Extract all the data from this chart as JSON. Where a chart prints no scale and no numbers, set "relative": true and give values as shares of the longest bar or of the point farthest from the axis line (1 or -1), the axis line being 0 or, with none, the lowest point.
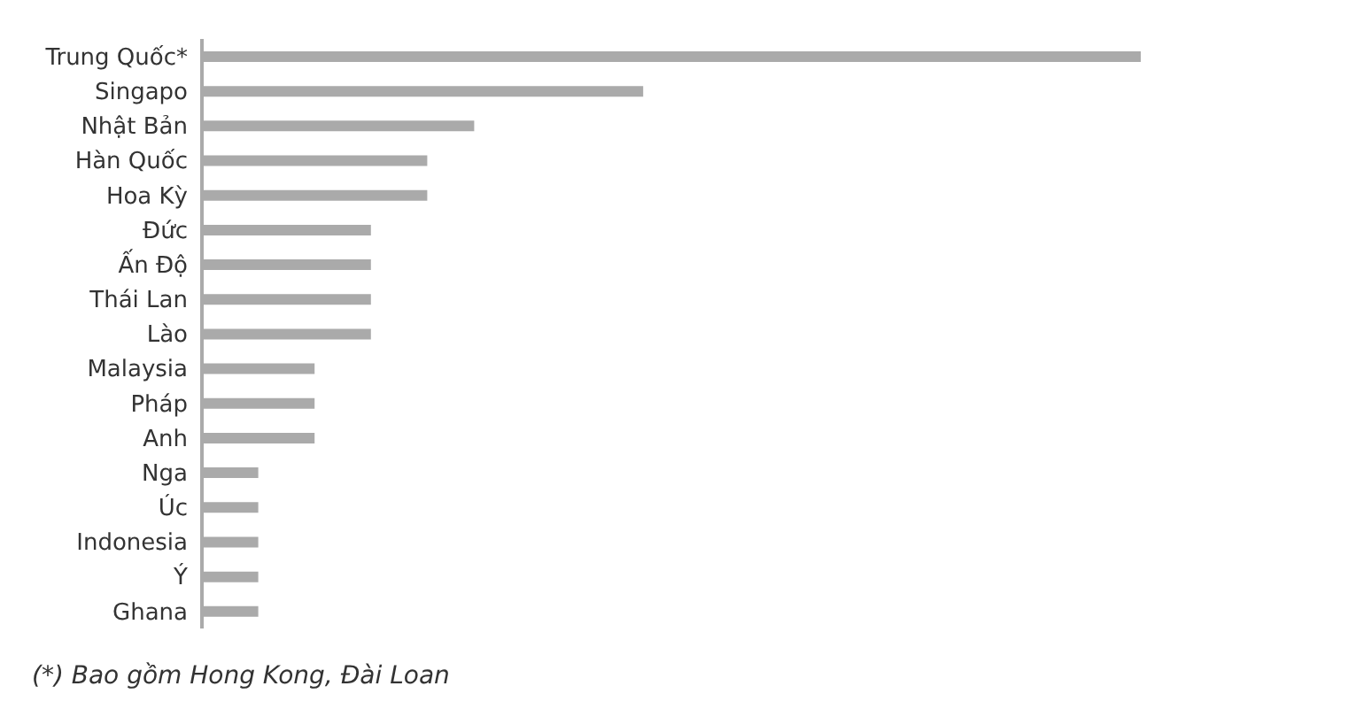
{
  "chart_data": {
    "type": "bar",
    "orientation": "horizontal",
    "relative": true,
    "categories": [
      "Trung Quốc*",
      "Singapo",
      "Nhật Bản",
      "Hàn Quốc",
      "Hoa Kỳ",
      "Đức",
      "Ấn Độ",
      "Thái Lan",
      "Lào",
      "Malaysia",
      "Pháp",
      "Anh",
      "Nga",
      "Úc",
      "Indonesia",
      "Ý",
      "Ghana"
    ],
    "values": [
      1,
      0.47,
      0.29,
      0.24,
      0.24,
      0.18,
      0.18,
      0.18,
      0.18,
      0.12,
      0.12,
      0.12,
      0.06,
      0.06,
      0.06,
      0.06,
      0.06
    ],
    "color": "#aaaaaa",
    "annotations": [
      "(*) Bao gồm Hong Kong, Đài Loan"
    ]
  }
}
